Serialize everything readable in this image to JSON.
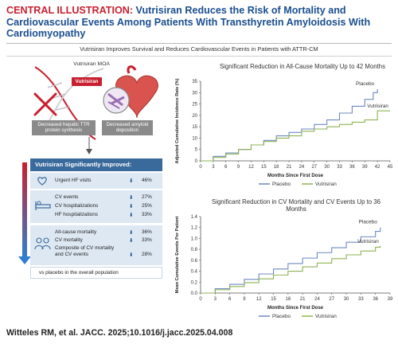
{
  "header": {
    "title_lead": "CENTRAL ILLUSTRATION:",
    "title_rest": "Vutrisiran Reduces the Risk of Mortality and Cardiovascular Events Among Patients With Transthyretin Amyloidosis With Cardiomyopathy",
    "subtitle": "Vutrisiran Improves Survival and Reduces Cardiovascular Events in Patients with ATTR-CM"
  },
  "moa": {
    "title": "Vutrisiran MOA",
    "badge": "Vutrisiran",
    "left_caption": "Decreased hepatic TTR protein synthesis",
    "right_caption": "Decreased amyloid deposition",
    "colors": {
      "dna": "#c8202f",
      "heart": "#d9534f",
      "amyloid": "#9a6fb0"
    }
  },
  "improved": {
    "title": "Vutrisiran Significantly Improved:",
    "groups": [
      {
        "icon": "heart-icon",
        "items": [
          {
            "label": "Urgent HF visits",
            "pct": "46%"
          }
        ]
      },
      {
        "icon": "hospital-bed-icon",
        "items": [
          {
            "label": "CV events",
            "pct": "27%"
          },
          {
            "label": "CV hospitalizations",
            "pct": "25%"
          },
          {
            "label": "HF hospitalizations",
            "pct": "33%"
          }
        ]
      },
      {
        "icon": "people-icon",
        "items": [
          {
            "label": "All-cause mortality",
            "pct": "36%"
          },
          {
            "label": "CV mortality",
            "pct": "33%"
          },
          {
            "label": "Composite of CV mortality and CV events",
            "pct": "28%"
          }
        ]
      }
    ],
    "footer": "vs placebo in the overall population"
  },
  "citation": "Witteles RM, et al. JACC. 2025;10.1016/j.jacc.2025.04.008",
  "chart_data": [
    {
      "type": "line",
      "title": "Significant Reduction in All-Cause Mortality Up to 42 Months",
      "xlabel": "Months Since First Dose",
      "ylabel": "Adjusted Cumulative Incidence Rate (%)",
      "xlim": [
        0,
        45
      ],
      "ylim": [
        0,
        35
      ],
      "xticks": [
        "0",
        "3",
        "6",
        "9",
        "12",
        "15",
        "18",
        "21",
        "24",
        "27",
        "30",
        "33",
        "36",
        "39",
        "42",
        "45"
      ],
      "yticks": [
        "0",
        "5",
        "10",
        "15",
        "20",
        "25",
        "30",
        "35"
      ],
      "legend": "bottom",
      "grid": false,
      "series": [
        {
          "name": "Placebo",
          "color": "#6f89c2",
          "x": [
            0,
            3,
            6,
            9,
            12,
            15,
            18,
            21,
            24,
            27,
            30,
            33,
            36,
            39,
            41,
            42
          ],
          "y": [
            0,
            2,
            3.5,
            5,
            7,
            9,
            11,
            12.5,
            14,
            16,
            18,
            21,
            24,
            27,
            30,
            31.5
          ]
        },
        {
          "name": "Vutrisiran",
          "color": "#8fb253",
          "x": [
            0,
            3,
            6,
            9,
            12,
            15,
            18,
            21,
            24,
            27,
            30,
            33,
            36,
            39,
            42,
            45
          ],
          "y": [
            0,
            1.5,
            3,
            5,
            7,
            8.5,
            10,
            11,
            13,
            14,
            15,
            16,
            17,
            18,
            22,
            22
          ]
        }
      ],
      "annotations": [
        {
          "text": "Placebo",
          "series": "Placebo"
        },
        {
          "text": "Vutrisiran",
          "series": "Vutrisiran"
        }
      ]
    },
    {
      "type": "line",
      "title": "Significant Reduction in CV Mortality and CV Events Up to 36 Months",
      "xlabel": "Months Since First Dose",
      "ylabel": "Mean Cumulative Events Per Patient",
      "xlim": [
        0,
        39
      ],
      "ylim": [
        0,
        1.4
      ],
      "xticks": [
        "0",
        "3",
        "6",
        "9",
        "12",
        "15",
        "18",
        "21",
        "24",
        "27",
        "30",
        "33",
        "36",
        "39"
      ],
      "yticks": [
        "0.0",
        "0.2",
        "0.4",
        "0.6",
        "0.8",
        "1.0",
        "1.2",
        "1.4"
      ],
      "legend": "bottom",
      "grid": false,
      "series": [
        {
          "name": "Placebo",
          "color": "#6f89c2",
          "x": [
            0,
            3,
            6,
            9,
            12,
            15,
            18,
            21,
            24,
            27,
            30,
            33,
            36,
            37
          ],
          "y": [
            0,
            0.08,
            0.16,
            0.25,
            0.35,
            0.44,
            0.54,
            0.64,
            0.74,
            0.83,
            0.93,
            1.03,
            1.13,
            1.2
          ]
        },
        {
          "name": "Vutrisiran",
          "color": "#8fb253",
          "x": [
            0,
            3,
            6,
            9,
            12,
            15,
            18,
            21,
            24,
            27,
            30,
            33,
            36,
            37
          ],
          "y": [
            0,
            0.06,
            0.12,
            0.19,
            0.26,
            0.33,
            0.4,
            0.48,
            0.55,
            0.63,
            0.7,
            0.77,
            0.84,
            0.86
          ]
        }
      ],
      "annotations": [
        {
          "text": "Placebo",
          "series": "Placebo"
        },
        {
          "text": "Vutrisiran",
          "series": "Vutrisiran"
        }
      ]
    }
  ]
}
